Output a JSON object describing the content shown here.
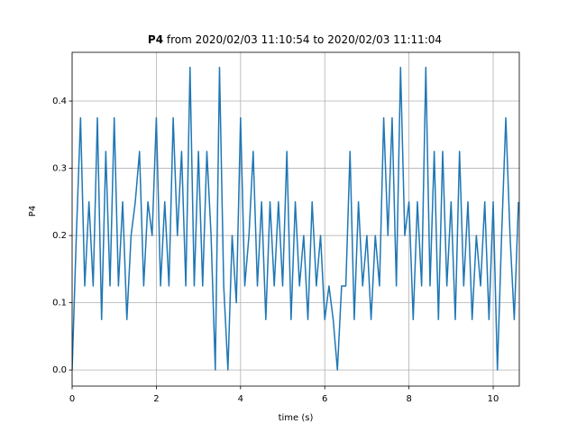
{
  "chart_data": {
    "type": "line",
    "title_variable": "P4",
    "title": "from 2020/02/03 11:10:54 to 2020/02/03 11:11:04",
    "xlabel": "time (s)",
    "ylabel": "P4",
    "color": "#1f77b4",
    "grid": true,
    "xlim": [
      0,
      10.62
    ],
    "ylim": [
      -0.024,
      0.4725
    ],
    "xticks": [
      0,
      2,
      4,
      6,
      8,
      10
    ],
    "yticks": [
      {
        "value": 0,
        "label": "0.0"
      },
      0.1,
      0.2,
      0.3,
      0.4
    ],
    "x": [
      0.0,
      0.1,
      0.2,
      0.3,
      0.4,
      0.5,
      0.6,
      0.7,
      0.8,
      0.9,
      1.0,
      1.1,
      1.2,
      1.3,
      1.4,
      1.5,
      1.6,
      1.7,
      1.8,
      1.9,
      2.0,
      2.1,
      2.2,
      2.3,
      2.4,
      2.5,
      2.6,
      2.7,
      2.8,
      2.9,
      3.0,
      3.1,
      3.2,
      3.3,
      3.4,
      3.5,
      3.6,
      3.7,
      3.8,
      3.9,
      4.0,
      4.1,
      4.2,
      4.3,
      4.4,
      4.5,
      4.6,
      4.7,
      4.8,
      4.9,
      5.0,
      5.1,
      5.2,
      5.3,
      5.4,
      5.5,
      5.6,
      5.7,
      5.8,
      5.9,
      6.0,
      6.1,
      6.2,
      6.3,
      6.4,
      6.5,
      6.6,
      6.7,
      6.8,
      6.9,
      7.0,
      7.1,
      7.2,
      7.3,
      7.4,
      7.5,
      7.6,
      7.7,
      7.8,
      7.9,
      8.0,
      8.1,
      8.2,
      8.3,
      8.4,
      8.5,
      8.6,
      8.7,
      8.8,
      8.9,
      9.0,
      9.1,
      9.2,
      9.3,
      9.4,
      9.5,
      9.6,
      9.7,
      9.8,
      9.9,
      10.0,
      10.1,
      10.2,
      10.3,
      10.4,
      10.5,
      10.6
    ],
    "values": [
      0,
      0.2,
      0.375,
      0.125,
      0.25,
      0.125,
      0.375,
      0.075,
      0.325,
      0.125,
      0.375,
      0.125,
      0.25,
      0.075,
      0.2,
      0.25,
      0.325,
      0.125,
      0.25,
      0.2,
      0.375,
      0.125,
      0.25,
      0.125,
      0.375,
      0.2,
      0.325,
      0.125,
      0.45,
      0.125,
      0.325,
      0.125,
      0.325,
      0.2,
      0,
      0.45,
      0.125,
      0,
      0.2,
      0.1,
      0.375,
      0.125,
      0.2,
      0.325,
      0.125,
      0.25,
      0.075,
      0.25,
      0.125,
      0.25,
      0.125,
      0.325,
      0.075,
      0.25,
      0.125,
      0.2,
      0.075,
      0.25,
      0.125,
      0.2,
      0.075,
      0.125,
      0.075,
      0,
      0.125,
      0.125,
      0.325,
      0.075,
      0.25,
      0.125,
      0.2,
      0.075,
      0.2,
      0.125,
      0.375,
      0.2,
      0.375,
      0.125,
      0.45,
      0.2,
      0.25,
      0.075,
      0.25,
      0.125,
      0.45,
      0.125,
      0.325,
      0.075,
      0.325,
      0.125,
      0.25,
      0.075,
      0.325,
      0.125,
      0.25,
      0.075,
      0.2,
      0.125,
      0.25,
      0.075,
      0.25,
      0,
      0.2,
      0.375,
      0.2,
      0.075,
      0.25
    ]
  }
}
